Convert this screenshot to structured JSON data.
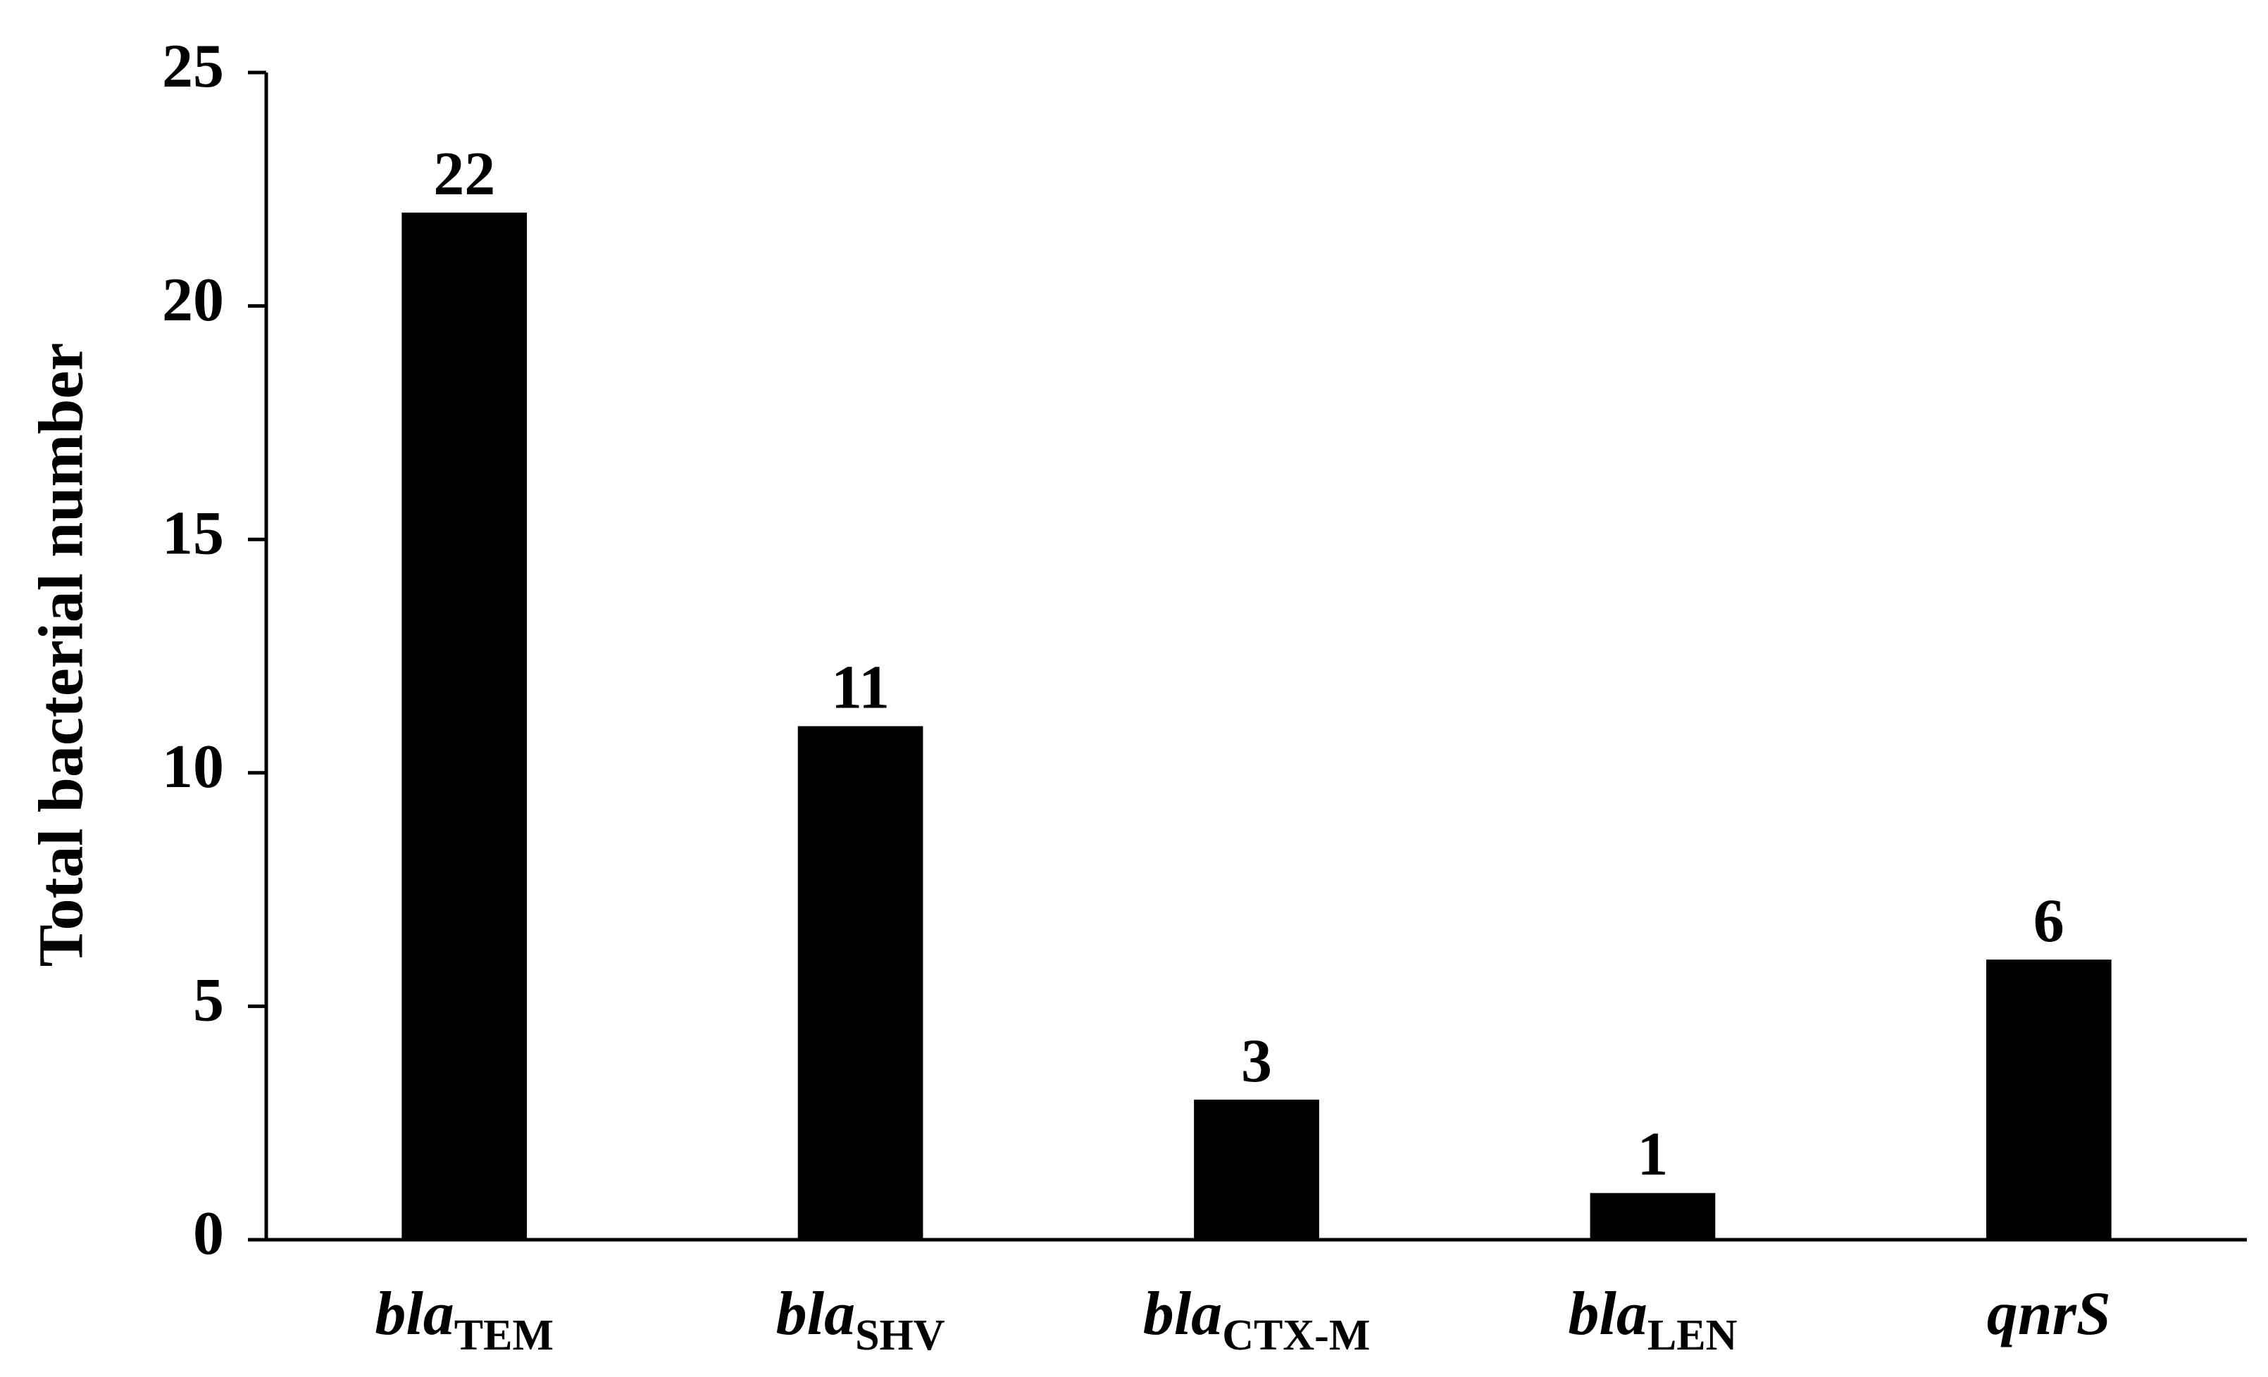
{
  "chart_data": {
    "type": "bar",
    "y_label": "Total bacterial number",
    "categories": [
      {
        "text": "bla",
        "subscript": "TEM"
      },
      {
        "text": "bla",
        "subscript": "SHV"
      },
      {
        "text": "bla",
        "subscript": "CTX-M"
      },
      {
        "text": "bla",
        "subscript": "LEN"
      },
      {
        "text": "qnrS"
      }
    ],
    "values": [
      22,
      11,
      3,
      1,
      6
    ],
    "color": "#000000",
    "ylim": [
      0,
      25
    ],
    "yticks": [
      0,
      5,
      10,
      15,
      20,
      25
    ],
    "grid": false
  }
}
